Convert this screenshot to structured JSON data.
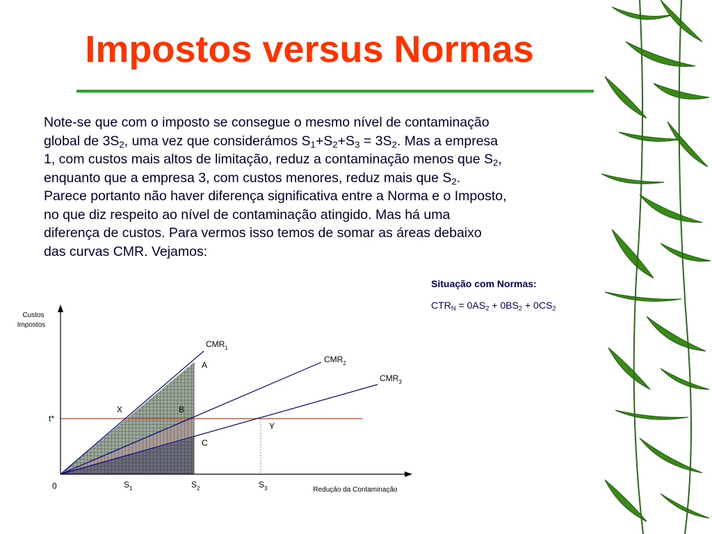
{
  "title": "Impostos versus Normas",
  "body": {
    "l1": "Note-se que com o imposto se consegue o mesmo nível de contaminação",
    "l2": {
      "a": "global de 3S",
      "a_sub": "2",
      "b": ", uma vez que considerámos S",
      "b_sub": "1",
      "c": "+S",
      "c_sub": "2",
      "d": "+S",
      "d_sub": "3",
      "e": " = 3S",
      "e_sub": "2",
      "f": ". Mas a empresa"
    },
    "l3": {
      "a": "1, com custos mais altos de limitação, reduz a contaminação menos que S",
      "a_sub": "2",
      "b": ","
    },
    "l4": {
      "a": "enquanto que a empresa 3, com custos menores, reduz mais que S",
      "a_sub": "2",
      "b": "."
    },
    "l5": "Parece portanto não haver diferença significativa entre a Norma e o Imposto,",
    "l6": "no que diz respeito ao nível de contaminação atingido. Mas há uma",
    "l7": "diferença de custos. Para vermos isso temos de somar as áreas debaixo",
    "l8": "das curvas CMR. Vejamos:"
  },
  "side": {
    "heading": "Situação com Normas:",
    "f_a": "CTR",
    "f_a_sub": "N",
    "f_b": " = 0AS",
    "f_b_sub": "2",
    "f_c": " + 0BS",
    "f_c_sub": "2",
    "f_d": " + 0CS",
    "f_d_sub": "2"
  },
  "diagram": {
    "y_axis_label_1": "Custos",
    "y_axis_label_2": "Impostos",
    "x_axis_label": "Redução da Contaminação",
    "origin": "0",
    "tstar": "t*",
    "s1": "S",
    "s1_sub": "1",
    "s2": "S",
    "s2_sub": "2",
    "s3": "S",
    "s3_sub": "3",
    "cmr1": "CMR",
    "cmr1_sub": "1",
    "cmr2": "CMR",
    "cmr2_sub": "2",
    "cmr3": "CMR",
    "cmr3_sub": "3",
    "area_a": "A",
    "area_b": "B",
    "area_c": "C",
    "point_x": "X",
    "point_y": "Y",
    "colors": {
      "axes": "#000000",
      "cmr": "#000080",
      "tstar_line": "#dd3311",
      "area_a_fill": "#9aa89a",
      "area_b_fill": "#a89a94",
      "area_c_fill": "#6a6c7c",
      "hatch": "#111111",
      "dotted": "#888888"
    }
  },
  "decoration": {
    "right_border": "bamboo-leaves",
    "leaf_color": "#3a8a1a"
  }
}
